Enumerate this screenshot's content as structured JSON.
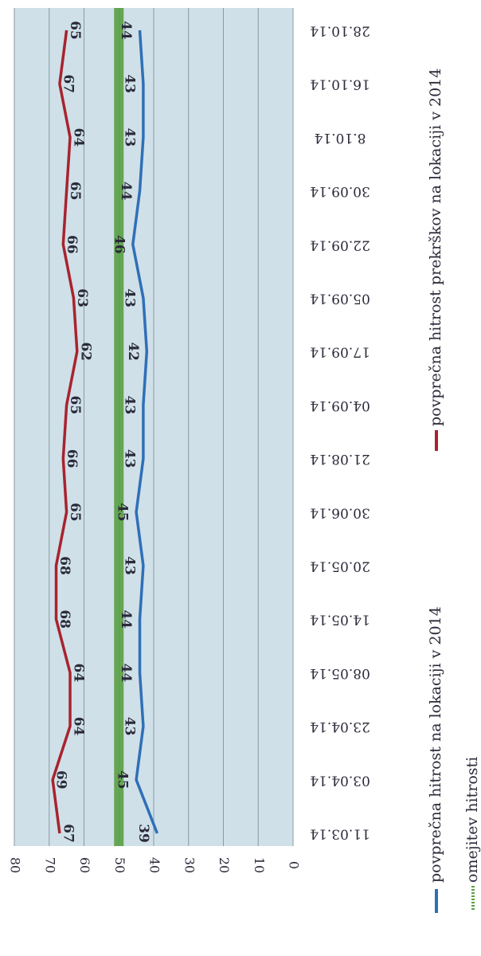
{
  "chart_data": {
    "type": "line",
    "categories": [
      "11.03.14",
      "03.04.14",
      "23.04.14",
      "08.05.14",
      "14.05.14",
      "20.05.14",
      "30.06.14",
      "21.08.14",
      "04.09.14",
      "17.09.14",
      "05.09.14",
      "22.09.14",
      "30.09.14",
      "8.10.14",
      "16.10.14",
      "28.10.14"
    ],
    "series": [
      {
        "name": "povprečna hitrost prekrškov na lokaciji v 2014",
        "color": "#a8232e",
        "values": [
          67,
          69,
          64,
          64,
          68,
          68,
          65,
          66,
          65,
          62,
          63,
          66,
          65,
          64,
          67,
          65
        ]
      },
      {
        "name": "povprečna hitrost na lokaciji v 2014",
        "color": "#2f6fb8",
        "values": [
          39,
          45,
          43,
          44,
          44,
          43,
          45,
          43,
          43,
          42,
          43,
          46,
          44,
          43,
          43,
          44
        ]
      },
      {
        "name": "omejitev hitrosti",
        "color": "#5aa043",
        "values": [
          50,
          50,
          50,
          50,
          50,
          50,
          50,
          50,
          50,
          50,
          50,
          50,
          50,
          50,
          50,
          50
        ]
      }
    ],
    "y_ticks": [
      0,
      10,
      20,
      30,
      40,
      50,
      60,
      70,
      80
    ],
    "ylim": [
      0,
      80
    ],
    "grid": true,
    "orientation": "rotated-90-clockwise",
    "legend": "bottom",
    "plot_background": "#cfe0e8"
  }
}
